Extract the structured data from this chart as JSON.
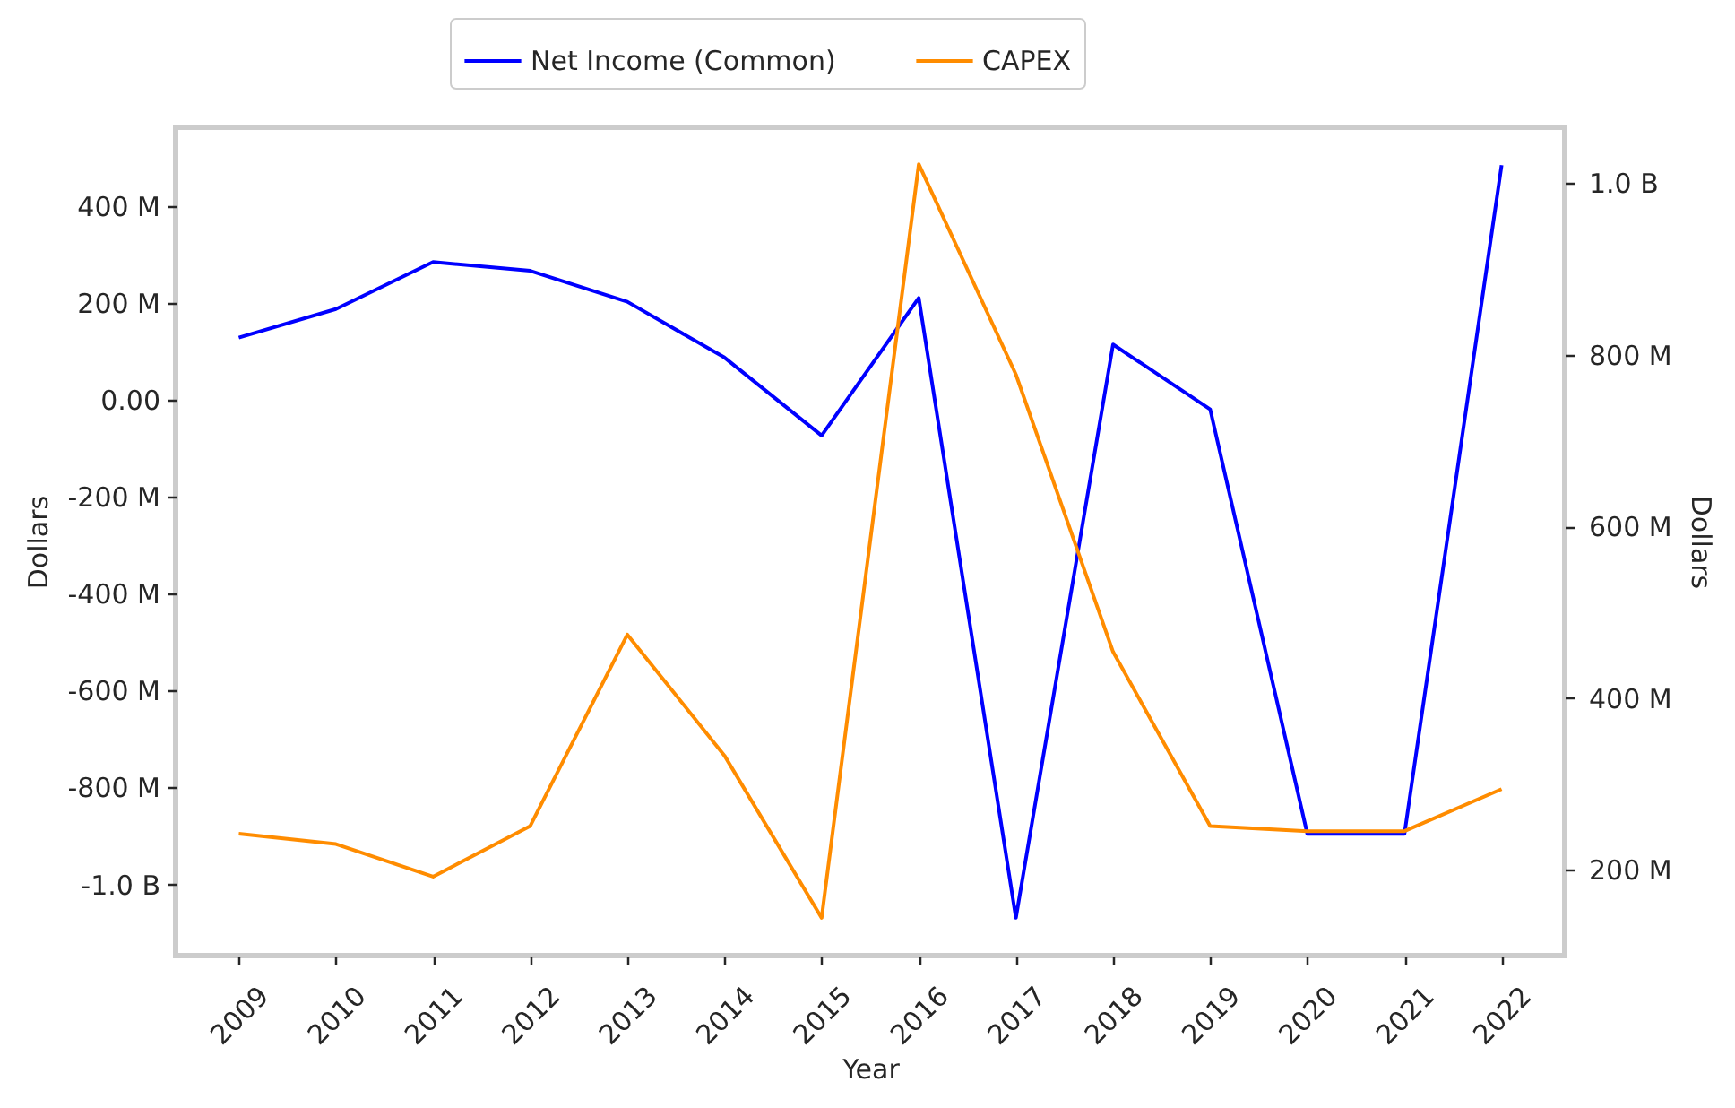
{
  "chart_data": {
    "type": "line",
    "xlabel": "Year",
    "ylabel": "Dollars",
    "y2label": "Dollars",
    "categories": [
      "2009",
      "2010",
      "2011",
      "2012",
      "2013",
      "2014",
      "2015",
      "2016",
      "2017",
      "2018",
      "2019",
      "2020",
      "2021",
      "2022"
    ],
    "series": [
      {
        "name": "Net Income (Common)",
        "color": "#0000ff",
        "values": [
          128000000,
          187000000,
          284000000,
          266000000,
          202000000,
          87000000,
          -74000000,
          210000000,
          -1069000000,
          114000000,
          -20000000,
          -896000000,
          -896000000,
          484000000
        ]
      },
      {
        "name": "CAPEX",
        "color": "#ff8c00",
        "axis": "y2",
        "values": [
          242000000,
          230000000,
          192000000,
          251000000,
          474000000,
          333000000,
          144000000,
          1022000000,
          777000000,
          454000000,
          251000000,
          245000000,
          245000000,
          294000000
        ]
      }
    ],
    "ylim": [
      -1147000000,
      562000000
    ],
    "yticks": [
      {
        "value": 400000000,
        "label": "400 M"
      },
      {
        "value": 200000000,
        "label": "200 M"
      },
      {
        "value": 0,
        "label": "0.00"
      },
      {
        "value": -200000000,
        "label": "-200 M"
      },
      {
        "value": -400000000,
        "label": "-400 M"
      },
      {
        "value": -600000000,
        "label": "-600 M"
      },
      {
        "value": -800000000,
        "label": "-800 M"
      },
      {
        "value": -1000000000,
        "label": "-1.0 B"
      }
    ],
    "y2lim": [
      100000000,
      1065000000
    ],
    "y2ticks": [
      {
        "value": 1000000000,
        "label": "1.0 B"
      },
      {
        "value": 800000000,
        "label": "800 M"
      },
      {
        "value": 600000000,
        "label": "600 M"
      },
      {
        "value": 400000000,
        "label": "400 M"
      },
      {
        "value": 200000000,
        "label": "200 M"
      }
    ],
    "grid": false,
    "legend": "top"
  }
}
